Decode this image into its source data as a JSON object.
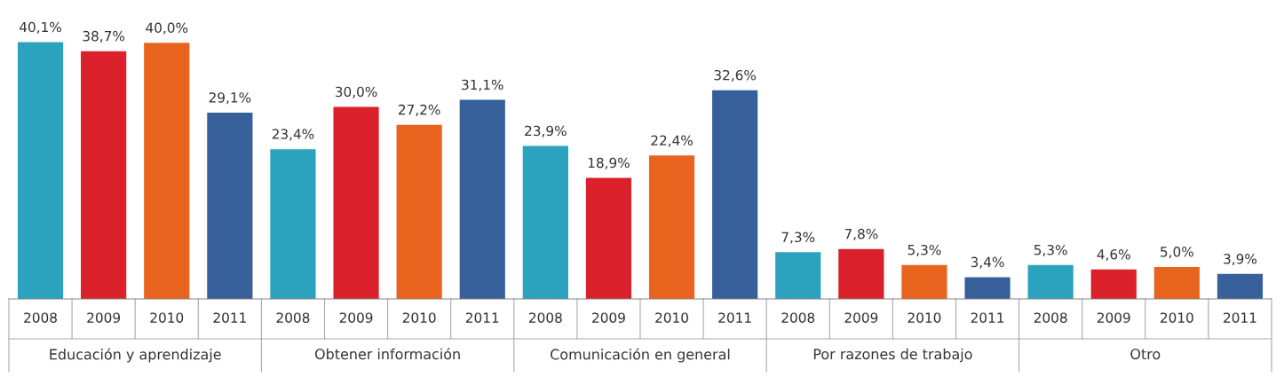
{
  "chart_data": {
    "type": "bar",
    "categories": [
      "Educación y aprendizaje",
      "Obtener información",
      "Comunicación en general",
      "Por razones de trabajo",
      "Otro"
    ],
    "series": [
      {
        "name": "2008",
        "color": "#2ba3bf",
        "values": [
          40.1,
          23.4,
          23.9,
          7.3,
          5.3
        ],
        "value_labels": [
          "40,1%",
          "23,4%",
          "23,9%",
          "7,3%",
          "5,3%"
        ]
      },
      {
        "name": "2009",
        "color": "#d9202b",
        "values": [
          38.7,
          30.0,
          18.9,
          7.8,
          4.6
        ],
        "value_labels": [
          "38,7%",
          "30,0%",
          "18,9%",
          "7,8%",
          "4,6%"
        ]
      },
      {
        "name": "2010",
        "color": "#e8641e",
        "values": [
          40.0,
          27.2,
          22.4,
          5.3,
          5.0
        ],
        "value_labels": [
          "40,0%",
          "27,2%",
          "22,4%",
          "5,3%",
          "5,0%"
        ]
      },
      {
        "name": "2011",
        "color": "#37609b",
        "values": [
          29.1,
          31.1,
          32.6,
          3.4,
          3.9
        ],
        "value_labels": [
          "29,1%",
          "31,1%",
          "32,6%",
          "3,4%",
          "3,9%"
        ]
      }
    ]
  }
}
